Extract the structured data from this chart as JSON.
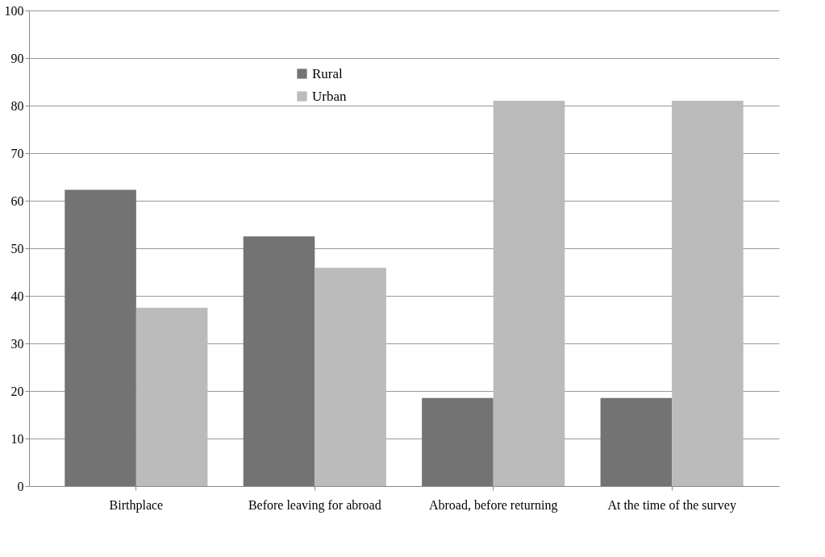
{
  "chart_data": {
    "type": "bar",
    "categories": [
      "Birthplace",
      "Before leaving for abroad",
      "Abroad, before returning",
      "At the time of the survey"
    ],
    "series": [
      {
        "name": "Rural",
        "color": "#737373",
        "values": [
          62.3,
          52.5,
          18.5,
          18.5
        ]
      },
      {
        "name": "Urban",
        "color": "#bbbbbb",
        "values": [
          37.5,
          45.9,
          81,
          81
        ]
      }
    ],
    "ylim": [
      0,
      100
    ],
    "yticks": [
      0,
      10,
      20,
      30,
      40,
      50,
      60,
      70,
      80,
      90,
      100
    ],
    "grid": "y",
    "legend": "top"
  }
}
